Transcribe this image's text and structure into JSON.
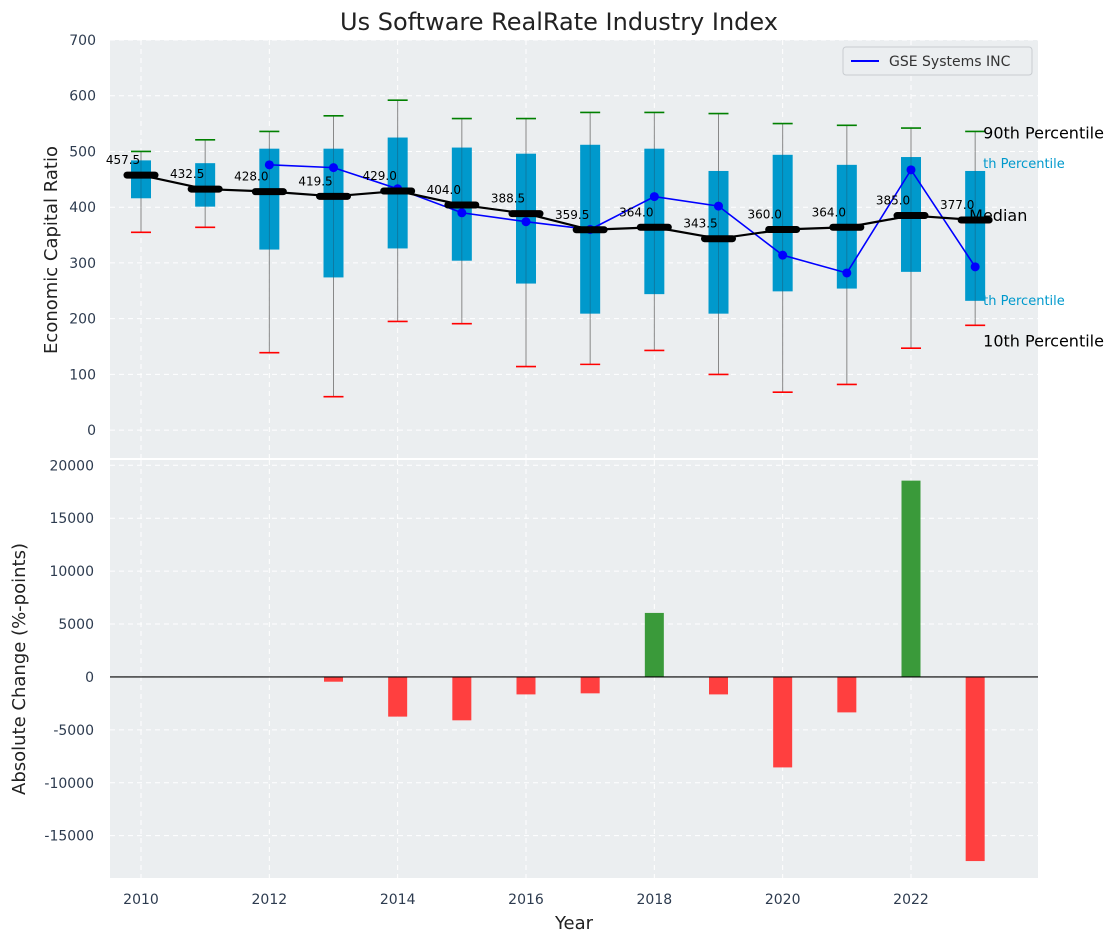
{
  "chart_data": [
    {
      "type": "box",
      "title": "Us Software RealRate Industry Index",
      "xlabel": "",
      "ylabel": "Economic Capital Ratio",
      "ylim": [
        -50,
        700
      ],
      "yticks": [
        0,
        100,
        200,
        300,
        400,
        500,
        600,
        700
      ],
      "x": [
        2010,
        2011,
        2012,
        2013,
        2014,
        2015,
        2016,
        2017,
        2018,
        2019,
        2020,
        2021,
        2022,
        2023
      ],
      "p10": [
        355,
        364,
        139,
        60,
        195,
        191,
        114,
        118,
        143,
        100,
        68,
        82,
        147,
        188
      ],
      "q25": [
        416,
        401,
        324,
        274,
        326,
        304,
        263,
        209,
        244,
        209,
        249,
        254,
        284,
        232
      ],
      "median": [
        457.5,
        432.5,
        428.0,
        419.5,
        429.0,
        404.0,
        388.5,
        359.5,
        364.0,
        343.5,
        360.0,
        364.0,
        385.0,
        377.0
      ],
      "median_labels": [
        "457.5",
        "432.5",
        "428.0",
        "419.5",
        "429.0",
        "404.0",
        "388.5",
        "359.5",
        "364.0",
        "343.5",
        "360.0",
        "364.0",
        "385.0",
        "377.0"
      ],
      "q75": [
        484,
        479,
        505,
        505,
        525,
        507,
        496,
        512,
        505,
        465,
        494,
        476,
        490,
        465
      ],
      "p90": [
        500,
        521,
        536,
        564,
        592,
        559,
        559,
        570,
        570,
        568,
        550,
        547,
        542,
        536
      ],
      "series": [
        {
          "name": "GSE Systems INC",
          "x": [
            2012,
            2013,
            2014,
            2015,
            2016,
            2017,
            2018,
            2019,
            2020,
            2021,
            2022,
            2023
          ],
          "values": [
            476,
            471,
            433,
            390,
            374,
            360,
            419,
            402,
            314,
            282,
            467,
            293
          ]
        }
      ],
      "annotations": {
        "p90": "90th Percentile",
        "q75": "th Percentile",
        "median": "Median",
        "q25": "th Percentile",
        "p10": "10th Percentile"
      },
      "legend": "top-right",
      "grid": true,
      "colors": {
        "box": "#0099cc",
        "median": "#000000",
        "company": "#0000ff",
        "p90_cap": "#008000",
        "p10_cap": "#ff0000",
        "background": "#ebeef0"
      }
    },
    {
      "type": "bar",
      "xlabel": "Year",
      "ylabel": "Absolute Change (%-points)",
      "ylim": [
        -19000,
        20500
      ],
      "yticks": [
        -15000,
        -10000,
        -5000,
        0,
        5000,
        10000,
        15000,
        20000
      ],
      "xticks": [
        2010,
        2012,
        2014,
        2016,
        2018,
        2020,
        2022
      ],
      "x": [
        2013,
        2014,
        2015,
        2016,
        2017,
        2018,
        2019,
        2020,
        2021,
        2022,
        2023
      ],
      "values": [
        -450,
        -3750,
        -4100,
        -1650,
        -1550,
        6050,
        -1650,
        -8550,
        -3350,
        18550,
        -17400
      ],
      "grid": true,
      "colors": {
        "positive": "#3a9a3a",
        "negative": "#ff3f3f"
      }
    }
  ]
}
